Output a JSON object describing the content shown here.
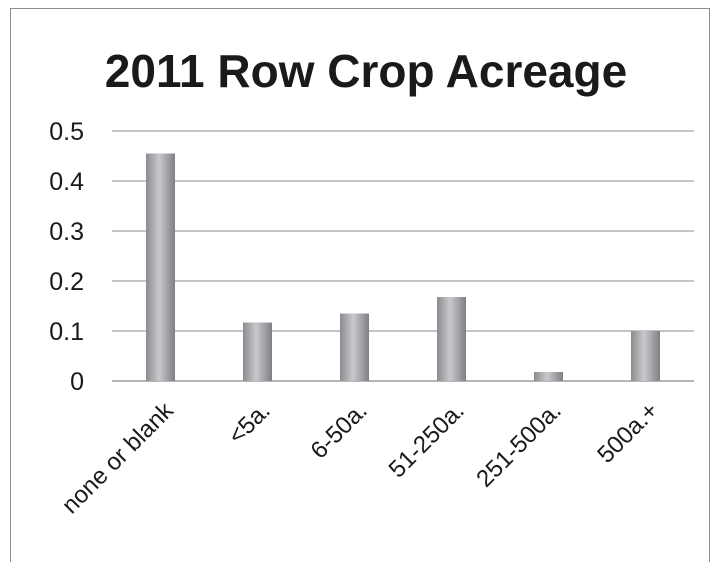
{
  "chart_data": {
    "type": "bar",
    "title": "2011 Row Crop Acreage",
    "xlabel": "",
    "ylabel": "",
    "categories": [
      "none or blank",
      "<5a.",
      "6-50a.",
      "51-250a.",
      "251-500a.",
      "500a.+"
    ],
    "values": [
      0.455,
      0.117,
      0.135,
      0.168,
      0.018,
      0.1
    ],
    "ylim": [
      0,
      0.5
    ],
    "yticks": [
      "0",
      "0.1",
      "0.2",
      "0.3",
      "0.4",
      "0.5"
    ],
    "grid": true,
    "legend": "none",
    "colors": {
      "bar_light": "#c4c6c9",
      "bar_dark": "#7d7f83",
      "gridline": "#8a8a8a",
      "text": "#1a1a1a"
    }
  }
}
